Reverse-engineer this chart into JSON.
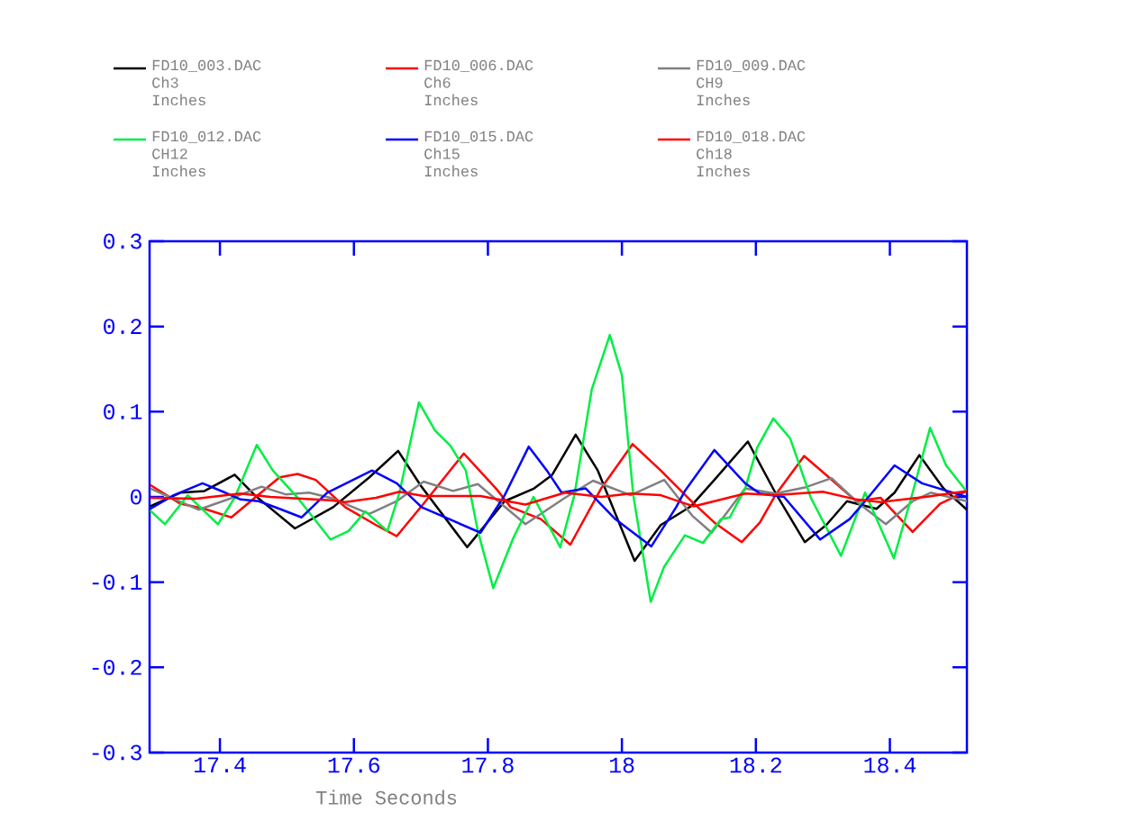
{
  "chart_data": {
    "type": "line",
    "xlabel": "Time Seconds",
    "legend": "top",
    "xlim": [
      17.295,
      18.515
    ],
    "xticks": [
      17.4,
      17.6,
      17.8,
      18,
      18.2,
      18.4
    ],
    "ylim": [
      -0.3,
      0.3
    ],
    "yticks": [
      -0.3,
      -0.2,
      -0.1,
      0,
      0.1,
      0.2,
      0.3
    ],
    "series": [
      {
        "name": "FD10_003.DAC Ch3 Inches",
        "color": "#000000",
        "x": [
          17.296,
          17.341,
          17.377,
          17.422,
          17.452,
          17.512,
          17.569,
          17.623,
          17.666,
          17.7,
          17.769,
          17.825,
          17.869,
          17.896,
          17.931,
          17.964,
          18.019,
          18.058,
          18.103,
          18.138,
          18.188,
          18.229,
          18.273,
          18.305,
          18.336,
          18.38,
          18.407,
          18.444,
          18.48,
          18.515
        ],
        "values": [
          -0.011,
          0.005,
          0.007,
          0.026,
          0.002,
          -0.037,
          -0.012,
          0.023,
          0.054,
          0.013,
          -0.059,
          -0.005,
          0.01,
          0.026,
          0.073,
          0.031,
          -0.075,
          -0.033,
          -0.011,
          0.02,
          0.065,
          0.005,
          -0.053,
          -0.033,
          -0.005,
          -0.014,
          0.005,
          0.049,
          0.01,
          -0.015
        ]
      },
      {
        "name": "FD10_006.DAC Ch6 Inches",
        "color": "#ff0000",
        "x": [
          17.296,
          17.341,
          17.377,
          17.417,
          17.452,
          17.489,
          17.516,
          17.543,
          17.587,
          17.633,
          17.664,
          17.704,
          17.764,
          17.812,
          17.834,
          17.879,
          17.923,
          17.969,
          18.016,
          18.058,
          18.105,
          18.138,
          18.179,
          18.206,
          18.229,
          18.272,
          18.309,
          18.35,
          18.386,
          18.434,
          18.475,
          18.515
        ],
        "values": [
          0.014,
          -0.008,
          -0.014,
          -0.024,
          -0.001,
          0.023,
          0.027,
          0.02,
          -0.012,
          -0.033,
          -0.046,
          -0.008,
          0.051,
          0.01,
          -0.012,
          -0.026,
          -0.056,
          0.01,
          0.062,
          0.031,
          -0.006,
          -0.03,
          -0.053,
          -0.03,
          0.002,
          0.048,
          0.023,
          -0.005,
          -0.001,
          -0.041,
          -0.008,
          0.007
        ]
      },
      {
        "name": "FD10_009.DAC CH9 Inches",
        "color": "#808080",
        "x": [
          17.296,
          17.327,
          17.368,
          17.422,
          17.462,
          17.498,
          17.533,
          17.565,
          17.623,
          17.664,
          17.704,
          17.748,
          17.785,
          17.856,
          17.915,
          17.957,
          18.013,
          18.063,
          18.105,
          18.134,
          18.184,
          18.229,
          18.273,
          18.313,
          18.354,
          18.394,
          18.434,
          18.461,
          18.515
        ],
        "values": [
          0.01,
          -0.001,
          -0.015,
          0.0,
          0.012,
          0.003,
          0.005,
          -0.001,
          -0.02,
          -0.005,
          0.018,
          0.007,
          0.015,
          -0.032,
          -0.001,
          0.019,
          0.002,
          0.02,
          -0.022,
          -0.042,
          0.01,
          0.004,
          0.011,
          0.022,
          -0.008,
          -0.032,
          -0.005,
          0.005,
          -0.005
        ]
      },
      {
        "name": "FD10_012.DAC CH12 Inches",
        "color": "#00ee44",
        "x": [
          17.296,
          17.318,
          17.352,
          17.397,
          17.422,
          17.455,
          17.479,
          17.516,
          17.565,
          17.592,
          17.617,
          17.65,
          17.668,
          17.697,
          17.721,
          17.744,
          17.767,
          17.785,
          17.808,
          17.838,
          17.868,
          17.908,
          17.929,
          17.955,
          17.982,
          18.0,
          18.017,
          18.043,
          18.063,
          18.094,
          18.121,
          18.148,
          18.161,
          18.184,
          18.202,
          18.226,
          18.251,
          18.282,
          18.327,
          18.363,
          18.406,
          18.434,
          18.46,
          18.484,
          18.515
        ],
        "values": [
          -0.016,
          -0.032,
          0.002,
          -0.032,
          -0.001,
          0.061,
          0.031,
          -0.001,
          -0.05,
          -0.04,
          -0.017,
          -0.04,
          0.005,
          0.111,
          0.078,
          0.06,
          0.031,
          -0.04,
          -0.107,
          -0.048,
          0.0,
          -0.059,
          0.002,
          0.126,
          0.19,
          0.143,
          0.002,
          -0.123,
          -0.082,
          -0.045,
          -0.054,
          -0.026,
          -0.024,
          0.01,
          0.058,
          0.092,
          0.069,
          -0.001,
          -0.069,
          0.005,
          -0.072,
          0.005,
          0.081,
          0.037,
          0.006
        ]
      },
      {
        "name": "FD10_015.DAC Ch15 Inches",
        "color": "#0000ff",
        "x": [
          17.296,
          17.331,
          17.374,
          17.408,
          17.431,
          17.458,
          17.489,
          17.522,
          17.56,
          17.627,
          17.664,
          17.701,
          17.789,
          17.825,
          17.861,
          17.888,
          17.91,
          17.946,
          17.99,
          18.044,
          18.081,
          18.094,
          18.138,
          18.184,
          18.206,
          18.242,
          18.296,
          18.34,
          18.363,
          18.407,
          18.448,
          18.515
        ],
        "values": [
          -0.014,
          0.002,
          0.016,
          0.005,
          -0.003,
          -0.005,
          -0.014,
          -0.024,
          0.005,
          0.031,
          0.016,
          -0.012,
          -0.042,
          0.002,
          0.059,
          0.031,
          0.005,
          0.01,
          -0.026,
          -0.058,
          -0.012,
          0.007,
          0.055,
          0.016,
          0.004,
          0.0,
          -0.05,
          -0.026,
          -0.005,
          0.037,
          0.016,
          0.0
        ]
      },
      {
        "name": "FD10_018.DAC Ch18 Inches",
        "color": "#ff0000",
        "x": [
          17.296,
          17.364,
          17.431,
          17.475,
          17.565,
          17.587,
          17.633,
          17.668,
          17.704,
          17.744,
          17.789,
          17.856,
          17.915,
          17.969,
          18.013,
          18.058,
          18.107,
          18.184,
          18.229,
          18.3,
          18.35,
          18.386,
          18.453,
          18.515
        ],
        "values": [
          -0.001,
          -0.002,
          0.004,
          0.0,
          -0.004,
          -0.006,
          -0.001,
          0.006,
          0.001,
          0.001,
          0.001,
          -0.009,
          0.005,
          0.0,
          0.004,
          0.002,
          -0.011,
          0.004,
          0.002,
          0.006,
          -0.003,
          -0.006,
          0.0,
          0.007
        ]
      }
    ]
  }
}
